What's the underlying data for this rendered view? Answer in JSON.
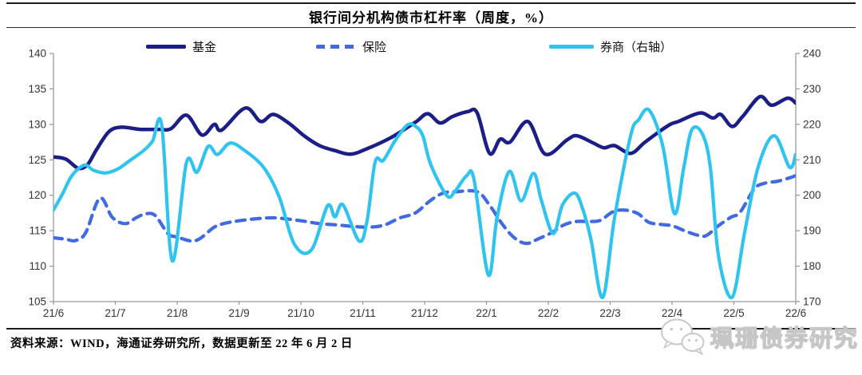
{
  "figure": {
    "title": "银行间分机构债市杠杆率（周度，%）",
    "source_note": "资料来源：WIND，海通证券研究所，数据更新至 22 年 6 月 2 日",
    "watermark_text": "珮珊债券研究"
  },
  "colors": {
    "fund": "#1b1e87",
    "insurance": "#4169e1",
    "securities": "#2fc4f0",
    "axis": "#9a9a9a",
    "tick_label": "#333333"
  },
  "chart_data": {
    "type": "line",
    "title": "银行间分机构债市杠杆率（周度，%）",
    "grid": false,
    "legend_position": "top",
    "x_axis": {
      "labels": [
        "21/6",
        "21/7",
        "21/8",
        "21/9",
        "21/10",
        "21/11",
        "21/12",
        "22/1",
        "22/2",
        "22/3",
        "22/4",
        "22/5",
        "22/6"
      ],
      "unit": "months_from_21/6",
      "range": [
        0,
        12
      ]
    },
    "left_axis": {
      "min": 105,
      "max": 140,
      "step": 5,
      "ticks": [
        140,
        135,
        130,
        125,
        120,
        115,
        110,
        105
      ]
    },
    "right_axis": {
      "min": 170,
      "max": 240,
      "step": 10,
      "ticks": [
        240,
        230,
        220,
        210,
        200,
        190,
        180,
        170
      ]
    },
    "series": [
      {
        "key": "fund",
        "name": "基金",
        "axis": "left",
        "style": "solid",
        "color": "#1b1e87",
        "width": 4.5,
        "points": [
          [
            0,
            125.4
          ],
          [
            0.2,
            125.1
          ],
          [
            0.4,
            123.8
          ],
          [
            0.55,
            124.3
          ],
          [
            0.7,
            126.5
          ],
          [
            0.9,
            129.0
          ],
          [
            1.1,
            129.6
          ],
          [
            1.4,
            129.3
          ],
          [
            1.7,
            129.3
          ],
          [
            1.9,
            129.4
          ],
          [
            2.15,
            131.3
          ],
          [
            2.4,
            128.5
          ],
          [
            2.6,
            130.0
          ],
          [
            2.72,
            129.2
          ],
          [
            3.1,
            132.3
          ],
          [
            3.35,
            130.4
          ],
          [
            3.55,
            131.4
          ],
          [
            3.8,
            130.2
          ],
          [
            4.05,
            128.4
          ],
          [
            4.3,
            127.0
          ],
          [
            4.55,
            126.3
          ],
          [
            4.8,
            125.8
          ],
          [
            5.05,
            126.5
          ],
          [
            5.45,
            128.1
          ],
          [
            5.85,
            130.3
          ],
          [
            6.05,
            131.5
          ],
          [
            6.25,
            130.2
          ],
          [
            6.45,
            131.1
          ],
          [
            6.7,
            131.8
          ],
          [
            6.85,
            131.6
          ],
          [
            7.05,
            125.9
          ],
          [
            7.22,
            127.9
          ],
          [
            7.38,
            127.5
          ],
          [
            7.67,
            130.4
          ],
          [
            7.95,
            125.8
          ],
          [
            8.3,
            127.8
          ],
          [
            8.46,
            128.4
          ],
          [
            8.72,
            127.4
          ],
          [
            8.9,
            126.7
          ],
          [
            9.07,
            127.0
          ],
          [
            9.33,
            125.9
          ],
          [
            9.55,
            127.4
          ],
          [
            9.75,
            128.7
          ],
          [
            9.97,
            130.0
          ],
          [
            10.1,
            130.4
          ],
          [
            10.45,
            131.6
          ],
          [
            10.66,
            130.9
          ],
          [
            10.79,
            131.4
          ],
          [
            10.97,
            129.7
          ],
          [
            11.14,
            131.1
          ],
          [
            11.42,
            133.9
          ],
          [
            11.61,
            132.7
          ],
          [
            11.87,
            133.7
          ],
          [
            12,
            133.0
          ]
        ]
      },
      {
        "key": "insurance",
        "name": "保险",
        "axis": "left",
        "style": "dashed",
        "color": "#4169e1",
        "width": 4.2,
        "points": [
          [
            0,
            114.0
          ],
          [
            0.2,
            113.8
          ],
          [
            0.35,
            113.6
          ],
          [
            0.52,
            114.7
          ],
          [
            0.75,
            119.6
          ],
          [
            0.95,
            116.9
          ],
          [
            1.16,
            116.0
          ],
          [
            1.35,
            116.9
          ],
          [
            1.5,
            117.4
          ],
          [
            1.65,
            117.1
          ],
          [
            1.85,
            114.6
          ],
          [
            2.0,
            114.1
          ],
          [
            2.3,
            113.6
          ],
          [
            2.6,
            115.5
          ],
          [
            2.8,
            116.1
          ],
          [
            3.0,
            116.4
          ],
          [
            3.3,
            116.7
          ],
          [
            3.6,
            116.8
          ],
          [
            4.0,
            116.4
          ],
          [
            4.3,
            116.0
          ],
          [
            4.6,
            115.8
          ],
          [
            4.85,
            115.6
          ],
          [
            5.1,
            115.5
          ],
          [
            5.35,
            115.8
          ],
          [
            5.6,
            116.8
          ],
          [
            5.85,
            117.5
          ],
          [
            6.1,
            119.3
          ],
          [
            6.3,
            120.3
          ],
          [
            6.5,
            120.5
          ],
          [
            6.85,
            120.5
          ],
          [
            7.05,
            118.6
          ],
          [
            7.25,
            116.0
          ],
          [
            7.45,
            114.0
          ],
          [
            7.65,
            113.2
          ],
          [
            7.85,
            113.9
          ],
          [
            8.05,
            114.7
          ],
          [
            8.25,
            115.8
          ],
          [
            8.45,
            116.3
          ],
          [
            8.7,
            116.3
          ],
          [
            8.85,
            116.5
          ],
          [
            9.05,
            117.7
          ],
          [
            9.25,
            117.9
          ],
          [
            9.45,
            117.4
          ],
          [
            9.62,
            116.2
          ],
          [
            9.8,
            115.9
          ],
          [
            10.0,
            115.7
          ],
          [
            10.2,
            115.0
          ],
          [
            10.4,
            114.4
          ],
          [
            10.55,
            114.3
          ],
          [
            10.75,
            115.7
          ],
          [
            10.95,
            116.9
          ],
          [
            11.1,
            117.6
          ],
          [
            11.33,
            120.9
          ],
          [
            11.5,
            121.7
          ],
          [
            11.72,
            122.0
          ],
          [
            11.95,
            122.6
          ],
          [
            12,
            122.8
          ]
        ]
      },
      {
        "key": "securities",
        "name": "券商（右轴）",
        "axis": "right",
        "style": "solid",
        "color": "#2fc4f0",
        "width": 4.2,
        "points": [
          [
            0,
            195.8
          ],
          [
            0.15,
            200.5
          ],
          [
            0.3,
            205.6
          ],
          [
            0.5,
            208.5
          ],
          [
            0.65,
            207.0
          ],
          [
            0.85,
            206.3
          ],
          [
            1.05,
            207.5
          ],
          [
            1.25,
            210.0
          ],
          [
            1.45,
            212.5
          ],
          [
            1.6,
            215.2
          ],
          [
            1.75,
            219.8
          ],
          [
            1.92,
            181.5
          ],
          [
            2.15,
            209.2
          ],
          [
            2.32,
            206.5
          ],
          [
            2.5,
            213.8
          ],
          [
            2.65,
            211.5
          ],
          [
            2.85,
            214.7
          ],
          [
            3.07,
            212.9
          ],
          [
            3.4,
            207.8
          ],
          [
            3.65,
            199.5
          ],
          [
            3.9,
            186.0
          ],
          [
            4.17,
            184.6
          ],
          [
            4.43,
            197.0
          ],
          [
            4.55,
            193.9
          ],
          [
            4.68,
            197.3
          ],
          [
            4.94,
            187.1
          ],
          [
            5.07,
            192.8
          ],
          [
            5.2,
            209.4
          ],
          [
            5.33,
            209.8
          ],
          [
            5.52,
            215.3
          ],
          [
            5.72,
            219.8
          ],
          [
            5.85,
            219.5
          ],
          [
            5.97,
            216.8
          ],
          [
            6.1,
            208.6
          ],
          [
            6.36,
            199.9
          ],
          [
            6.49,
            201.1
          ],
          [
            6.68,
            205.5
          ],
          [
            6.8,
            204.3
          ],
          [
            7.03,
            177.5
          ],
          [
            7.17,
            193.6
          ],
          [
            7.37,
            206.7
          ],
          [
            7.56,
            198.4
          ],
          [
            7.76,
            206.2
          ],
          [
            7.89,
            198.4
          ],
          [
            8.08,
            189.2
          ],
          [
            8.23,
            197.3
          ],
          [
            8.43,
            200.6
          ],
          [
            8.56,
            195.9
          ],
          [
            8.69,
            187.5
          ],
          [
            8.88,
            171.2
          ],
          [
            9.07,
            193.6
          ],
          [
            9.33,
            216.8
          ],
          [
            9.46,
            221.3
          ],
          [
            9.63,
            224.0
          ],
          [
            9.85,
            213.9
          ],
          [
            10.04,
            194.8
          ],
          [
            10.19,
            207.8
          ],
          [
            10.32,
            218.5
          ],
          [
            10.49,
            217.3
          ],
          [
            10.62,
            207.8
          ],
          [
            10.75,
            183.1
          ],
          [
            10.97,
            171.2
          ],
          [
            11.17,
            189.2
          ],
          [
            11.39,
            207.8
          ],
          [
            11.65,
            216.8
          ],
          [
            11.9,
            207.9
          ],
          [
            12,
            211.5
          ]
        ]
      }
    ]
  }
}
